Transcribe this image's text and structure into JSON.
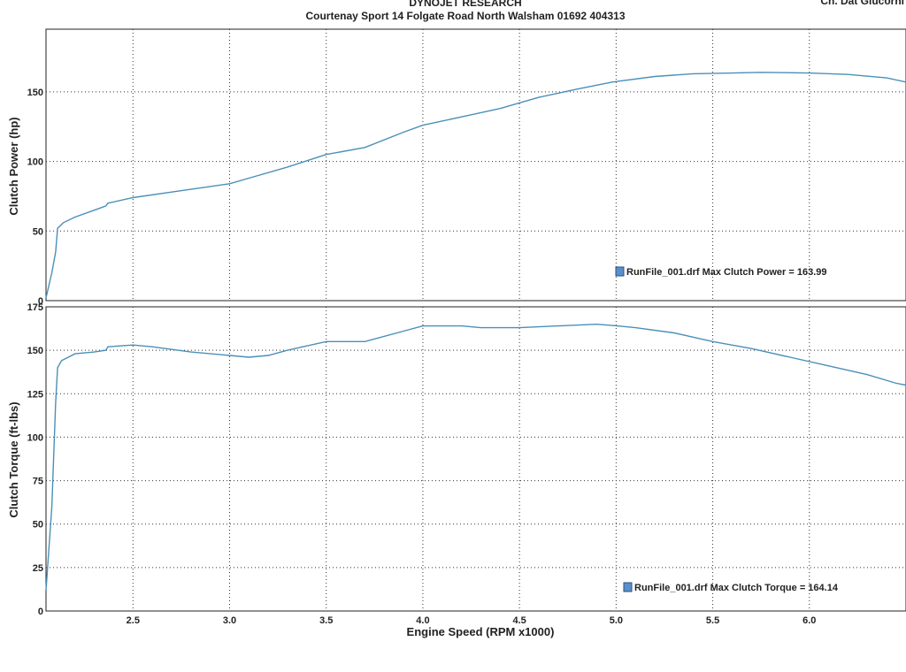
{
  "header": {
    "title": "DYNOJET RESEARCH",
    "subtitle": "Courtenay Sport 14 Folgate Road North Walsham 01692 404313",
    "corner_fragment": "Ch. Dat Glucorni"
  },
  "colors": {
    "series": "#4a90b8",
    "legend_box": "#5b8fc9"
  },
  "chart_data": [
    {
      "type": "line",
      "title": "",
      "xlabel": "",
      "ylabel": "Clutch Power (hp)",
      "xlim": [
        2.05,
        6.5
      ],
      "ylim": [
        0,
        195
      ],
      "xticks": [
        2.5,
        3.0,
        3.5,
        4.0,
        4.5,
        5.0,
        5.5,
        6.0
      ],
      "yticks": [
        0,
        50,
        100,
        150
      ],
      "grid": true,
      "legend": {
        "text": "RunFile_001.drf Max Clutch Power = 163.99",
        "placement": "bottom-right"
      },
      "series": [
        {
          "name": "RunFile_001.drf",
          "x": [
            2.05,
            2.08,
            2.1,
            2.11,
            2.14,
            2.2,
            2.3,
            2.36,
            2.37,
            2.5,
            2.7,
            3.0,
            3.1,
            3.3,
            3.5,
            3.7,
            3.9,
            4.0,
            4.2,
            4.4,
            4.6,
            4.8,
            4.98,
            5.2,
            5.4,
            5.6,
            5.75,
            6.0,
            6.2,
            6.4,
            6.5
          ],
          "y": [
            2,
            20,
            35,
            52,
            56,
            60,
            65,
            68,
            70,
            74,
            78,
            84,
            88,
            96,
            105,
            110,
            121,
            126,
            132,
            138,
            146,
            152,
            157,
            161,
            163,
            163.5,
            164,
            163.5,
            162.5,
            160,
            157
          ]
        }
      ]
    },
    {
      "type": "line",
      "title": "",
      "xlabel": "Engine Speed (RPM x1000)",
      "ylabel": "Clutch Torque (ft-lbs)",
      "xlim": [
        2.05,
        6.5
      ],
      "ylim": [
        0,
        175
      ],
      "xticks": [
        2.5,
        3.0,
        3.5,
        4.0,
        4.5,
        5.0,
        5.5,
        6.0
      ],
      "yticks": [
        0,
        25,
        50,
        75,
        100,
        125,
        150,
        175
      ],
      "grid": true,
      "legend": {
        "text": "RunFile_001.drf Max Clutch Torque = 164.14",
        "placement": "bottom-right"
      },
      "series": [
        {
          "name": "RunFile_001.drf",
          "x": [
            2.05,
            2.08,
            2.1,
            2.11,
            2.13,
            2.2,
            2.3,
            2.36,
            2.37,
            2.5,
            2.6,
            2.8,
            3.0,
            3.1,
            3.2,
            3.3,
            3.5,
            3.7,
            3.9,
            4.0,
            4.1,
            4.2,
            4.3,
            4.5,
            4.7,
            4.9,
            5.0,
            5.1,
            5.3,
            5.5,
            5.7,
            5.9,
            6.1,
            6.3,
            6.45,
            6.5
          ],
          "y": [
            12,
            60,
            120,
            140,
            144,
            148,
            149,
            150,
            152,
            153,
            152,
            149,
            147,
            146,
            147,
            150,
            155,
            155,
            161,
            164,
            164,
            164,
            163,
            163,
            164,
            165,
            164.1,
            163,
            160,
            155,
            151,
            146,
            141,
            136,
            131,
            130
          ]
        }
      ]
    }
  ]
}
